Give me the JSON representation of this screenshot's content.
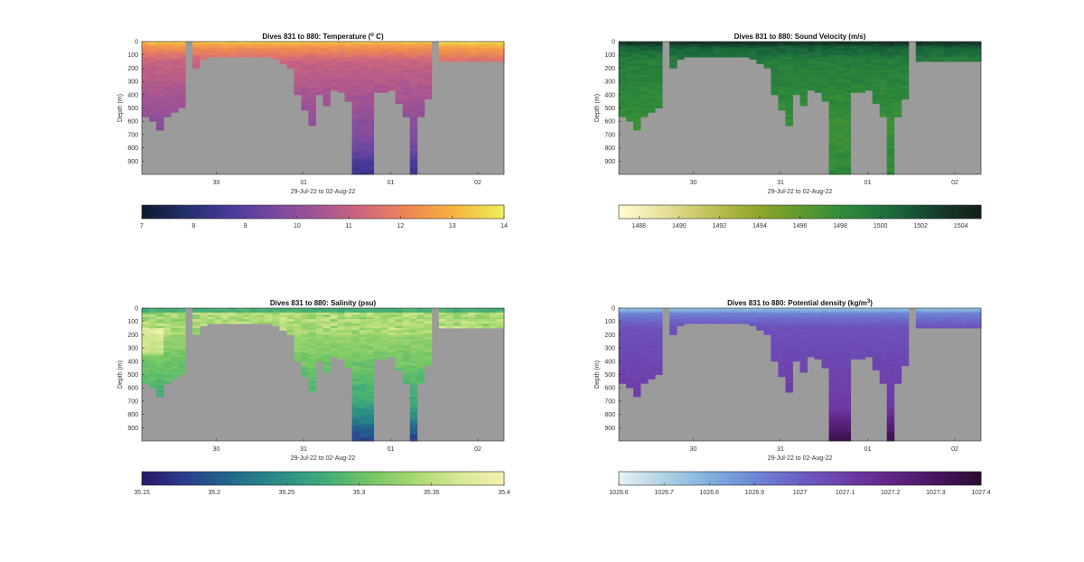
{
  "figure": {
    "background": "#ffffff",
    "land_color": "#9b9b9b"
  },
  "chart_data": [
    {
      "type": "heatmap",
      "title": "Dives 831 to 880: Temperature (",
      "title_sup": "o",
      "title_suffix": " C)",
      "ylabel": "Depth (m)",
      "xlabel": "29-Jul-22 to 02-Aug-22",
      "xticks": [
        "30",
        "31",
        "01",
        "02"
      ],
      "yticks": [
        "0",
        "100",
        "200",
        "300",
        "400",
        "500",
        "600",
        "700",
        "800",
        "900"
      ],
      "ylim": [
        0,
        1000
      ],
      "colormap": [
        "#0b1a2e",
        "#24306d",
        "#4b3a9c",
        "#7a4aa0",
        "#a75592",
        "#d46b78",
        "#f08c50",
        "#f6b840",
        "#eaf25a"
      ],
      "clim": [
        7,
        14
      ],
      "colorbar_ticks": [
        "7",
        "8",
        "9",
        "10",
        "11",
        "12",
        "13",
        "14"
      ],
      "colorbar_tick_values": [
        7,
        8,
        9,
        10,
        11,
        12,
        13,
        14
      ]
    },
    {
      "type": "heatmap",
      "title": "Dives 831 to 880: Sound Velocity (m/s)",
      "ylabel": "Depth (m)",
      "xlabel": "29-Jul-22 to 02-Aug-22",
      "xticks": [
        "30",
        "31",
        "01",
        "02"
      ],
      "yticks": [
        "0",
        "100",
        "200",
        "300",
        "400",
        "500",
        "600",
        "700",
        "800",
        "900"
      ],
      "ylim": [
        0,
        1000
      ],
      "colormap": [
        "#fefbd3",
        "#e7e19b",
        "#c2c15a",
        "#93a82b",
        "#5f9a2d",
        "#2f8a3b",
        "#1b6b3c",
        "#163f2c",
        "#111f16"
      ],
      "clim": [
        1487,
        1505
      ],
      "colorbar_ticks": [
        "1488",
        "1490",
        "1492",
        "1494",
        "1496",
        "1498",
        "1500",
        "1502",
        "1504"
      ],
      "colorbar_tick_values": [
        1488,
        1490,
        1492,
        1494,
        1496,
        1498,
        1500,
        1502,
        1504
      ]
    },
    {
      "type": "heatmap",
      "title": "Dives 831 to 880: Salinity (psu)",
      "ylabel": "Depth (m)",
      "xlabel": "29-Jul-22 to 02-Aug-22",
      "xticks": [
        "30",
        "31",
        "01",
        "02"
      ],
      "yticks": [
        "0",
        "100",
        "200",
        "300",
        "400",
        "500",
        "600",
        "700",
        "800",
        "900"
      ],
      "ylim": [
        0,
        1000
      ],
      "colormap": [
        "#29186b",
        "#2b3f8f",
        "#236a8c",
        "#2a8c87",
        "#3fab7a",
        "#70c465",
        "#a7d870",
        "#d6e893",
        "#f6f0b4"
      ],
      "clim": [
        35.15,
        35.4
      ],
      "colorbar_ticks": [
        "35.15",
        "35.2",
        "35.25",
        "35.3",
        "35.35",
        "35.4"
      ],
      "colorbar_tick_values": [
        35.15,
        35.2,
        35.25,
        35.3,
        35.35,
        35.4
      ]
    },
    {
      "type": "heatmap",
      "title": "Dives 831 to 880: Potential density (kg/m",
      "title_sup": "3",
      "title_suffix": ")",
      "ylabel": "Depth (m)",
      "xlabel": "29-Jul-22 to 02-Aug-22",
      "xticks": [
        "30",
        "31",
        "01",
        "02"
      ],
      "yticks": [
        "0",
        "100",
        "200",
        "300",
        "400",
        "500",
        "600",
        "700",
        "800",
        "900"
      ],
      "ylim": [
        0,
        1000
      ],
      "colormap": [
        "#e6f1f3",
        "#b0d2e4",
        "#7fb0de",
        "#6d86d6",
        "#6c5ec4",
        "#6e3eaa",
        "#612688",
        "#481761",
        "#2a0c2f"
      ],
      "clim": [
        1026.6,
        1027.4
      ],
      "colorbar_ticks": [
        "1026.6",
        "1026.7",
        "1026.8",
        "1026.9",
        "1027",
        "1027.1",
        "1027.2",
        "1027.3",
        "1027.4"
      ],
      "colorbar_tick_values": [
        1026.6,
        1026.7,
        1026.8,
        1026.9,
        1027.0,
        1027.1,
        1027.2,
        1027.3,
        1027.4
      ]
    }
  ]
}
